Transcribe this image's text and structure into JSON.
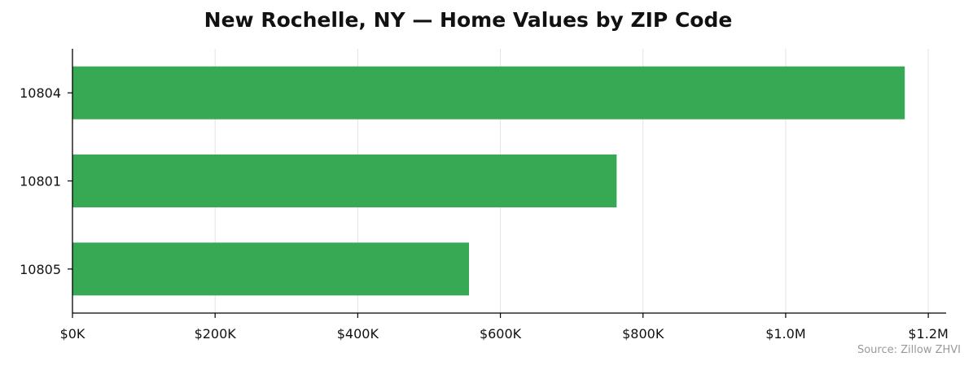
{
  "chart_data": {
    "type": "bar",
    "orientation": "horizontal",
    "title": "New Rochelle, NY — Home Values by ZIP Code",
    "xlabel": "",
    "ylabel": "",
    "categories": [
      "10804",
      "10801",
      "10805"
    ],
    "values": [
      1167000,
      763000,
      556000
    ],
    "xlim": [
      0,
      1225000
    ],
    "xticks": [
      0,
      200000,
      400000,
      600000,
      800000,
      1000000,
      1200000
    ],
    "xtick_labels": [
      "$0K",
      "$200K",
      "$400K",
      "$600K",
      "$800K",
      "$1.0M",
      "$1.2M"
    ],
    "grid": "vertical",
    "bar_color": "#37a854",
    "source": "Source: Zillow ZHVI"
  }
}
